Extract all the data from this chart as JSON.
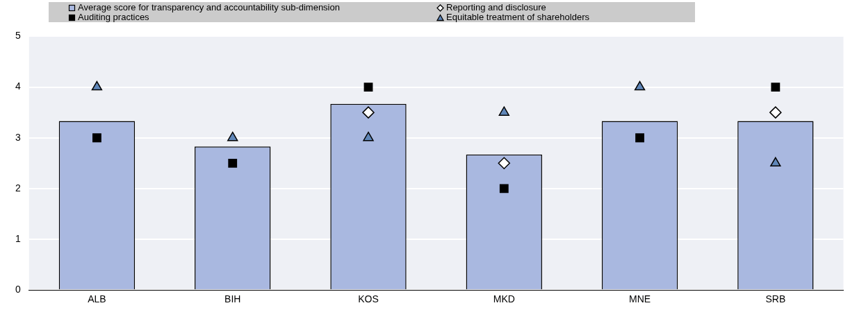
{
  "chart_data": {
    "type": "bar",
    "categories": [
      "ALB",
      "BIH",
      "KOS",
      "MKD",
      "MNE",
      "SRB"
    ],
    "series": [
      {
        "name": "Average score for transparency and accountability sub-dimension",
        "color": "#a9b8e0",
        "values": [
          3.33,
          2.83,
          3.67,
          2.67,
          3.33,
          3.33
        ]
      },
      {
        "name": "Reporting and disclosure",
        "type": "scatter",
        "marker": "diamond",
        "color": "#ffffff",
        "values": [
          null,
          null,
          3.5,
          2.5,
          null,
          3.5
        ]
      },
      {
        "name": "Auditing practices",
        "type": "scatter",
        "marker": "square",
        "color": "#000000",
        "values": [
          3,
          2.5,
          4,
          2,
          3,
          4
        ]
      },
      {
        "name": "Equitable treatment of shareholders",
        "type": "scatter",
        "marker": "triangle",
        "color": "#5f86b8",
        "values": [
          4,
          3,
          3,
          3.5,
          4,
          2.5
        ]
      }
    ],
    "ylim": [
      0,
      5
    ],
    "yticks": [
      0,
      1,
      2,
      3,
      4,
      5
    ],
    "grid": "y",
    "legend": "top"
  }
}
